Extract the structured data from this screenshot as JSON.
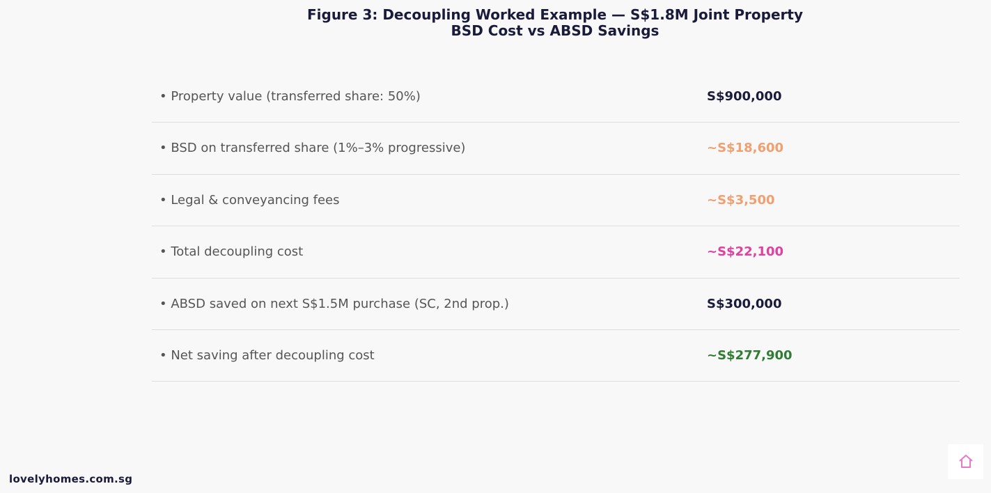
{
  "title_line1": "Figure 3: Decoupling Worked Example — S$1.8M Joint Property",
  "title_line2": "BSD Cost vs ABSD Savings",
  "chart_data": {
    "type": "table",
    "title": "Figure 3: Decoupling Worked Example — S$1.8M Joint Property",
    "subtitle": "BSD Cost vs ABSD Savings",
    "rows": [
      {
        "label": "• Property value (transferred share: 50%)",
        "value": "S$900,000",
        "color": "#1a1a3a"
      },
      {
        "label": "• BSD on transferred share (1%–3% progressive)",
        "value": "~S$18,600",
        "color": "#f0a070"
      },
      {
        "label": "• Legal & conveyancing fees",
        "value": "~S$3,500",
        "color": "#f0a070"
      },
      {
        "label": "• Total decoupling cost",
        "value": "~S$22,100",
        "color": "#e040a0"
      },
      {
        "label": "• ABSD saved on next S$1.5M purchase (SC, 2nd prop.)",
        "value": "S$300,000",
        "color": "#1a1a3a"
      },
      {
        "label": "• Net saving after decoupling cost",
        "value": "~S$277,900",
        "color": "#2e7d32"
      }
    ]
  },
  "footer": {
    "site": "lovelyhomes.com.sg",
    "logo_icon": "house-outline-icon",
    "logo_color": "#e879c8"
  }
}
